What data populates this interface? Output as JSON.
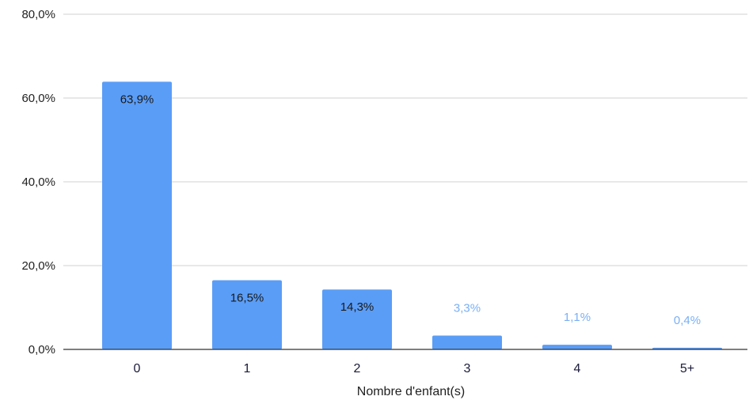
{
  "chart_data": {
    "type": "bar",
    "title": "",
    "xlabel": "Nombre d'enfant(s)",
    "ylabel": "",
    "categories": [
      "0",
      "1",
      "2",
      "3",
      "4",
      "5+"
    ],
    "values": [
      63.9,
      16.5,
      14.3,
      3.3,
      1.1,
      0.4
    ],
    "value_labels": [
      "63,9%",
      "16,5%",
      "14,3%",
      "3,3%",
      "1,1%",
      "0,4%"
    ],
    "ylim": [
      0,
      80
    ],
    "yticks": [
      {
        "value": 0,
        "label": "0,0%"
      },
      {
        "value": 20,
        "label": "20,0%"
      },
      {
        "value": 40,
        "label": "40,0%"
      },
      {
        "value": 60,
        "label": "60,0%"
      },
      {
        "value": 80,
        "label": "80,0%"
      }
    ],
    "grid": true,
    "legend": "none",
    "colors": {
      "bar": "#5a9df7",
      "label_inside": "#1a1a1a",
      "label_outside": "#7ab0f5",
      "grid": "#d0d0d0",
      "axis": "#333333"
    }
  }
}
